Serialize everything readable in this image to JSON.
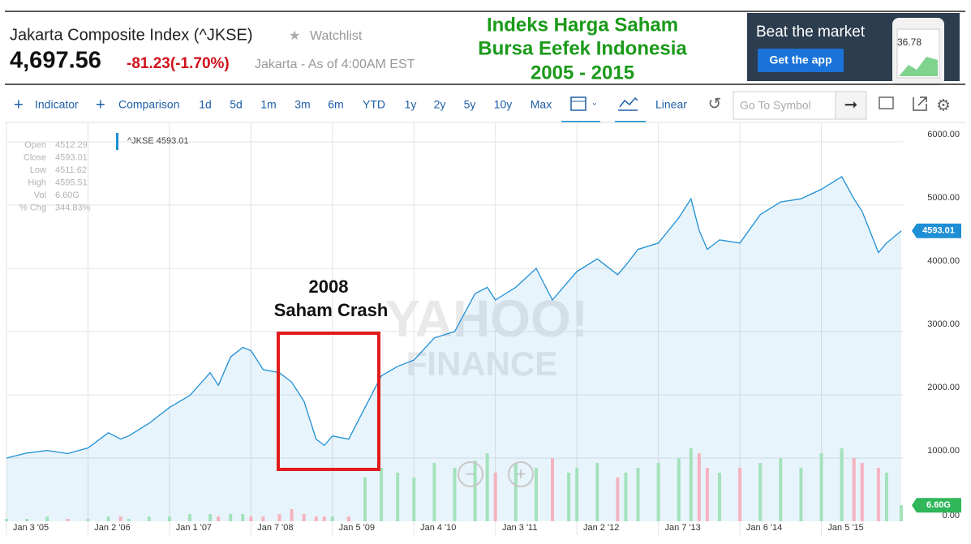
{
  "header": {
    "title": "Jakarta Composite Index (^JKSE)",
    "watchlist": "Watchlist",
    "price": "4,697.56",
    "change": "-81.23(-1.70%)",
    "market_note": "Jakarta - As of 4:00AM EST"
  },
  "overlay_title": [
    "Indeks Harga Saham",
    "Bursa Eefek Indonesia",
    "2005 - 2015"
  ],
  "ad": {
    "headline": "Beat the market",
    "button": "Get the app",
    "phone_value": "36.78"
  },
  "toolbar": {
    "indicator": "Indicator",
    "comparison": "Comparison",
    "ranges": [
      "1d",
      "5d",
      "1m",
      "3m",
      "6m",
      "YTD",
      "1y",
      "2y",
      "5y",
      "10y",
      "Max"
    ],
    "scale": "Linear",
    "search_placeholder": "Go To Symbol"
  },
  "info_panel": [
    {
      "label": "Open",
      "value": "4512.29"
    },
    {
      "label": "Close",
      "value": "4593.01"
    },
    {
      "label": "Low",
      "value": "4511.62"
    },
    {
      "label": "High",
      "value": "4595.51"
    },
    {
      "label": "Vol",
      "value": "6.60G"
    },
    {
      "label": "% Chg",
      "value": "344.83%"
    }
  ],
  "chart_data": {
    "type": "line",
    "x": [
      2005.0,
      2005.25,
      2005.5,
      2005.75,
      2006.0,
      2006.25,
      2006.4,
      2006.5,
      2006.75,
      2007.0,
      2007.25,
      2007.5,
      2007.6,
      2007.75,
      2007.9,
      2008.0,
      2008.15,
      2008.35,
      2008.5,
      2008.65,
      2008.8,
      2008.9,
      2009.0,
      2009.2,
      2009.4,
      2009.6,
      2009.8,
      2010.0,
      2010.25,
      2010.5,
      2010.75,
      2010.9,
      2011.0,
      2011.25,
      2011.5,
      2011.7,
      2011.9,
      2012.0,
      2012.25,
      2012.5,
      2012.6,
      2012.75,
      2013.0,
      2013.25,
      2013.4,
      2013.5,
      2013.6,
      2013.75,
      2014.0,
      2014.25,
      2014.5,
      2014.75,
      2015.0,
      2015.25,
      2015.4,
      2015.5,
      2015.7,
      2015.8,
      2015.98
    ],
    "series": [
      {
        "name": "^JKSE",
        "color": "#1e8fd5",
        "values": [
          1000,
          1080,
          1120,
          1070,
          1160,
          1400,
          1300,
          1350,
          1550,
          1800,
          1990,
          2350,
          2150,
          2600,
          2750,
          2700,
          2400,
          2350,
          2200,
          1900,
          1300,
          1200,
          1350,
          1300,
          1800,
          2300,
          2450,
          2550,
          2900,
          3000,
          3600,
          3700,
          3500,
          3700,
          4000,
          3500,
          3800,
          3950,
          4150,
          3900,
          4050,
          4300,
          4400,
          4800,
          5100,
          4600,
          4300,
          4450,
          4400,
          4850,
          5050,
          5100,
          5250,
          5450,
          5100,
          4900,
          4250,
          4400,
          4593.01
        ]
      }
    ],
    "volume": {
      "values": [
        1,
        1,
        2,
        1,
        1,
        2,
        2,
        1,
        2,
        2,
        3,
        3,
        2,
        3,
        3,
        2,
        2,
        3,
        5,
        3,
        2,
        2,
        2,
        2,
        18,
        22,
        20,
        18,
        24,
        22,
        25,
        28,
        20,
        24,
        22,
        26,
        20,
        22,
        24,
        18,
        20,
        22,
        24,
        26,
        30,
        28,
        22,
        20,
        22,
        24,
        26,
        22,
        28,
        30,
        26,
        24,
        22,
        20,
        6.6
      ],
      "colors": [
        "#a3e2bb",
        "#f5b3c0"
      ],
      "ylim": [
        0,
        50
      ],
      "yticks": [
        {
          "value": 0,
          "label": "0.00"
        }
      ]
    },
    "xlim": [
      2005,
      2016
    ],
    "xticks": [
      {
        "value": 2005,
        "label": "Jan 3 '05"
      },
      {
        "value": 2006,
        "label": "Jan 2 '06"
      },
      {
        "value": 2007,
        "label": "Jan 1 '07"
      },
      {
        "value": 2008,
        "label": "Jan 7 '08"
      },
      {
        "value": 2009,
        "label": "Jan 5 '09"
      },
      {
        "value": 2010,
        "label": "Jan 4 '10"
      },
      {
        "value": 2011,
        "label": "Jan 3 '11"
      },
      {
        "value": 2012,
        "label": "Jan 2 '12"
      },
      {
        "value": 2013,
        "label": "Jan 7 '13"
      },
      {
        "value": 2014,
        "label": "Jan 6 '14"
      },
      {
        "value": 2015,
        "label": "Jan 5 '15"
      }
    ],
    "ylim": [
      -218,
      6295
    ],
    "yticks": [
      {
        "value": 1000,
        "label": "1000.00"
      },
      {
        "value": 2000,
        "label": "2000.00"
      },
      {
        "value": 3000,
        "label": "3000.00"
      },
      {
        "value": 4000,
        "label": "4000.00"
      },
      {
        "value": 5000,
        "label": "5000.00"
      },
      {
        "value": 6000,
        "label": "6000.00"
      }
    ],
    "grid": true,
    "annotation": [
      "2008",
      "Saham Crash"
    ],
    "watermark": [
      "YAHOO!",
      "FINANCE"
    ]
  }
}
